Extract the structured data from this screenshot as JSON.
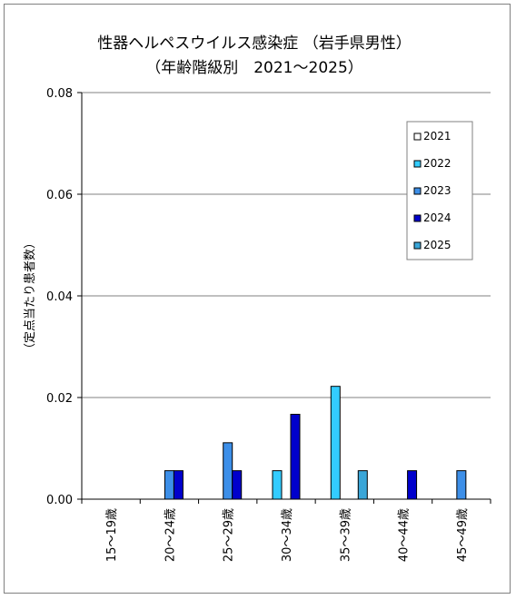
{
  "chart_data": {
    "type": "bar",
    "title": "性器ヘルペスウイルス感染症 （岩手県男性）",
    "subtitle": "（年齢階級別　2021～2025）",
    "ylabel": "（定点当たり患者数）",
    "xlabel": "",
    "ylim": [
      0,
      0.08
    ],
    "yticks": [
      "0.00",
      "0.02",
      "0.04",
      "0.06",
      "0.08"
    ],
    "grid": true,
    "legend_position": "right",
    "categories": [
      "15～19歳",
      "20～24歳",
      "25～29歳",
      "30～34歳",
      "35～39歳",
      "40～44歳",
      "45～49歳"
    ],
    "series": [
      {
        "name": "2021",
        "color": "#ffffff",
        "values": [
          0,
          0,
          0,
          0,
          0,
          0,
          0
        ]
      },
      {
        "name": "2022",
        "color": "#33ccff",
        "values": [
          0,
          0,
          0,
          0.0056,
          0.0222,
          0,
          0
        ]
      },
      {
        "name": "2023",
        "color": "#3d8fe8",
        "values": [
          0,
          0.0056,
          0.0111,
          0,
          0,
          0,
          0.0056
        ]
      },
      {
        "name": "2024",
        "color": "#0000cc",
        "values": [
          0,
          0.0056,
          0.0056,
          0.0167,
          0,
          0.0056,
          0
        ]
      },
      {
        "name": "2025",
        "color": "#3aa6d8",
        "values": [
          0,
          0,
          0,
          0,
          0.0056,
          0,
          0
        ]
      }
    ]
  }
}
